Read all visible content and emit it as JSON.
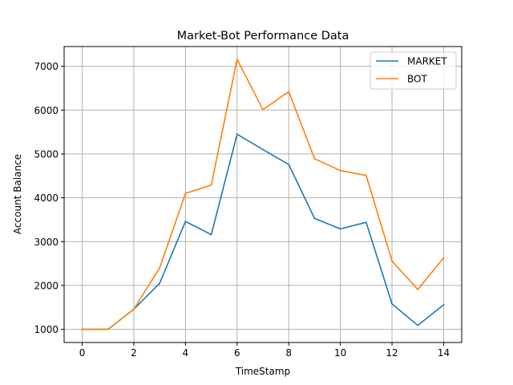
{
  "chart_data": {
    "type": "line",
    "title": "Market-Bot Performance Data",
    "xlabel": "TimeStamp",
    "ylabel": "Account Balance",
    "x": [
      0,
      1,
      2,
      3,
      4,
      5,
      6,
      7,
      8,
      9,
      10,
      11,
      12,
      13,
      14
    ],
    "series": [
      {
        "name": "MARKET",
        "color": "#1f77b4",
        "values": [
          1000,
          1000,
          1460,
          2050,
          3460,
          3160,
          5450,
          5100,
          4760,
          3530,
          3290,
          3440,
          1580,
          1090,
          1560
        ]
      },
      {
        "name": "BOT",
        "color": "#ff7f0e",
        "values": [
          1000,
          1000,
          1460,
          2400,
          4100,
          4290,
          7160,
          6010,
          6420,
          4890,
          4620,
          4510,
          2560,
          1910,
          2630
        ]
      }
    ],
    "xlim": [
      -0.7,
      14.7
    ],
    "ylim": [
      700,
      7450
    ],
    "xticks": [
      0,
      2,
      4,
      6,
      8,
      10,
      12,
      14
    ],
    "yticks": [
      1000,
      2000,
      3000,
      4000,
      5000,
      6000,
      7000
    ],
    "grid": true,
    "legend_position": "top-right"
  }
}
